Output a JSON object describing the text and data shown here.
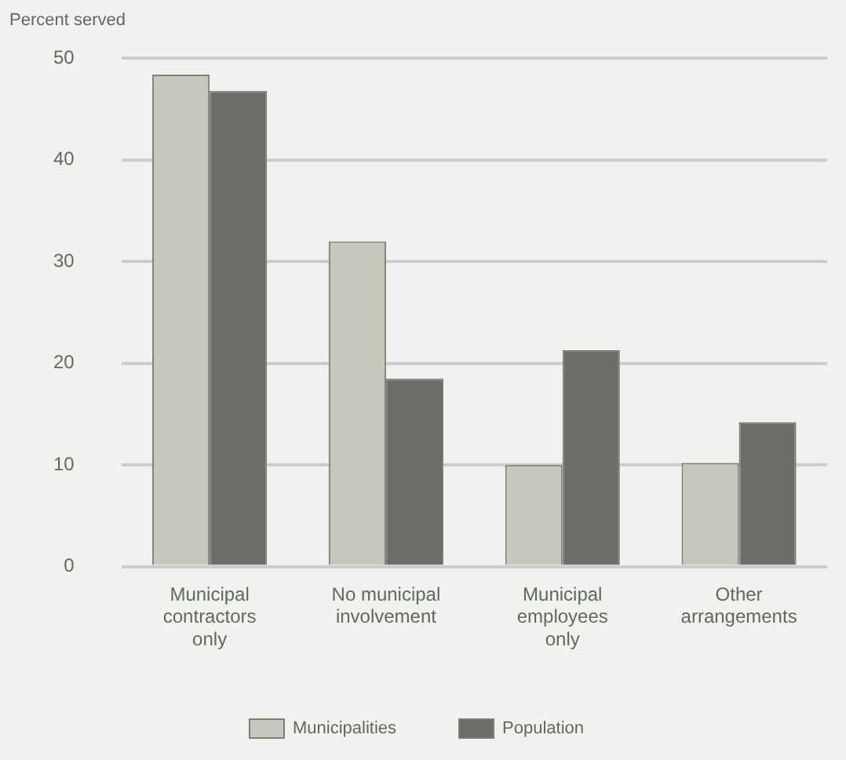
{
  "chart_data": {
    "type": "bar",
    "ylabel": "Percent served",
    "categories": [
      "Municipal contractors only",
      "No municipal involvement",
      "Municipal employees only",
      "Other arrangements"
    ],
    "series": [
      {
        "name": "Municipalities",
        "color": "#c5c8bc",
        "values": [
          48.4,
          32,
          10,
          10.2
        ]
      },
      {
        "name": "Population",
        "color": "#6b6e66",
        "values": [
          46.8,
          18.5,
          21.3,
          14.2
        ]
      }
    ],
    "ylim": [
      0,
      50
    ],
    "yticks": [
      0,
      10,
      20,
      30,
      40,
      50
    ],
    "grid": "y",
    "legend": "bottom"
  }
}
